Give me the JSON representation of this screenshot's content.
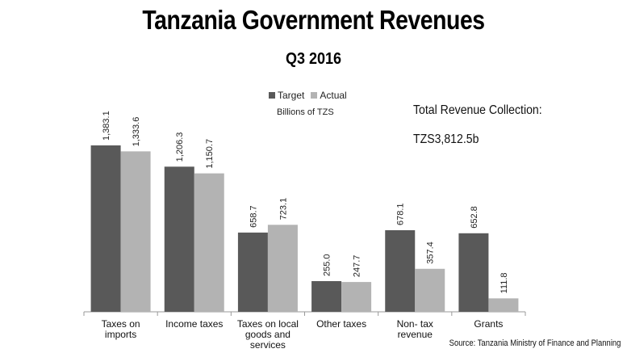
{
  "title": "Tanzania Government Revenues",
  "subtitle": "Q3 2016",
  "unit_label": "Billions of TZS",
  "total_label": "Total Revenue Collection:",
  "total_value": "TZS3,812.5b",
  "source": "Source: Tanzania Ministry of Finance and Planning",
  "colors": {
    "target": "#595959",
    "actual": "#b3b3b3",
    "axis": "#999999"
  },
  "chart_data": {
    "type": "bar",
    "categories": [
      [
        "Taxes on",
        "imports"
      ],
      [
        "Income taxes"
      ],
      [
        "Taxes on local",
        "goods and",
        "services"
      ],
      [
        "Other taxes"
      ],
      [
        "Non- tax",
        "revenue"
      ],
      [
        "Grants"
      ]
    ],
    "series": [
      {
        "name": "Target",
        "values": [
          1383.1,
          1206.3,
          658.7,
          255.0,
          678.1,
          652.8
        ],
        "labels": [
          "1,383.1",
          "1,206.3",
          "658.7",
          "255.0",
          "678.1",
          "652.8"
        ]
      },
      {
        "name": "Actual",
        "values": [
          1333.6,
          1150.7,
          723.1,
          247.7,
          357.4,
          111.8
        ],
        "labels": [
          "1,333.6",
          "1,150.7",
          "723.1",
          "247.7",
          "357.4",
          "111.8"
        ]
      }
    ],
    "ylim": [
      0,
      1400
    ],
    "legend_position": "top-center",
    "grid": false
  }
}
